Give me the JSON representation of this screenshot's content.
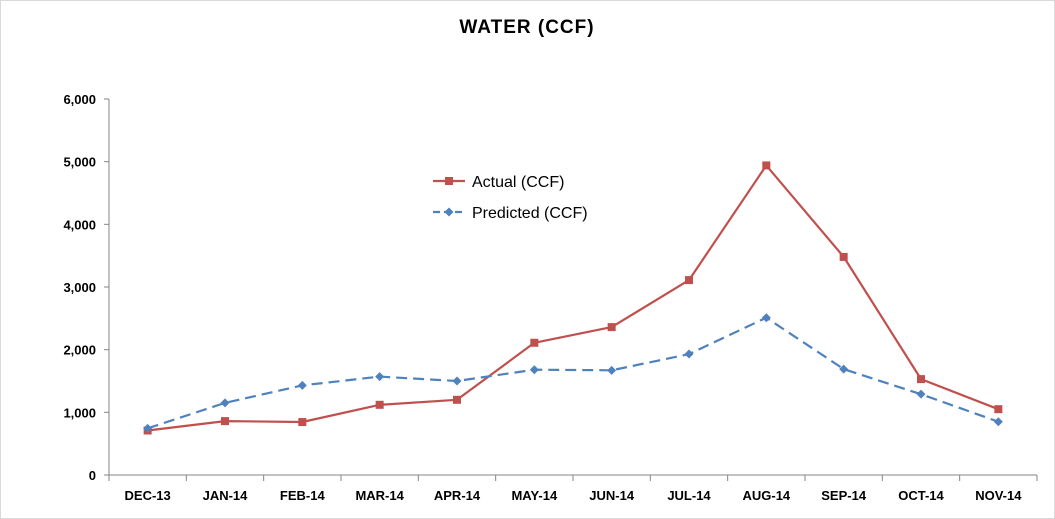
{
  "chart_data": {
    "type": "line",
    "title": "WATER (CCF)",
    "xlabel": "",
    "ylabel": "",
    "categories": [
      "DEC-13",
      "JAN-14",
      "FEB-14",
      "MAR-14",
      "APR-14",
      "MAY-14",
      "JUN-14",
      "JUL-14",
      "AUG-14",
      "SEP-14",
      "OCT-14",
      "NOV-14"
    ],
    "ylim": [
      0,
      6000
    ],
    "yticks": [
      0,
      1000,
      2000,
      3000,
      4000,
      5000,
      6000
    ],
    "ytick_labels": [
      "0",
      "1,000",
      "2,000",
      "3,000",
      "4,000",
      "5,000",
      "6,000"
    ],
    "grid": false,
    "legend_position": "center-top (inside plot)",
    "series": [
      {
        "name": "Actual (CCF)",
        "color": "#C0504D",
        "marker": "square",
        "line_style": "solid",
        "values": [
          710,
          860,
          845,
          1120,
          1200,
          2110,
          2360,
          3110,
          4940,
          3480,
          1530,
          1050
        ]
      },
      {
        "name": "Predicted (CCF)",
        "color": "#4F81BD",
        "marker": "diamond",
        "line_style": "dashed",
        "values": [
          745,
          1150,
          1430,
          1570,
          1500,
          1680,
          1670,
          1930,
          2510,
          1690,
          1290,
          850
        ]
      }
    ]
  }
}
